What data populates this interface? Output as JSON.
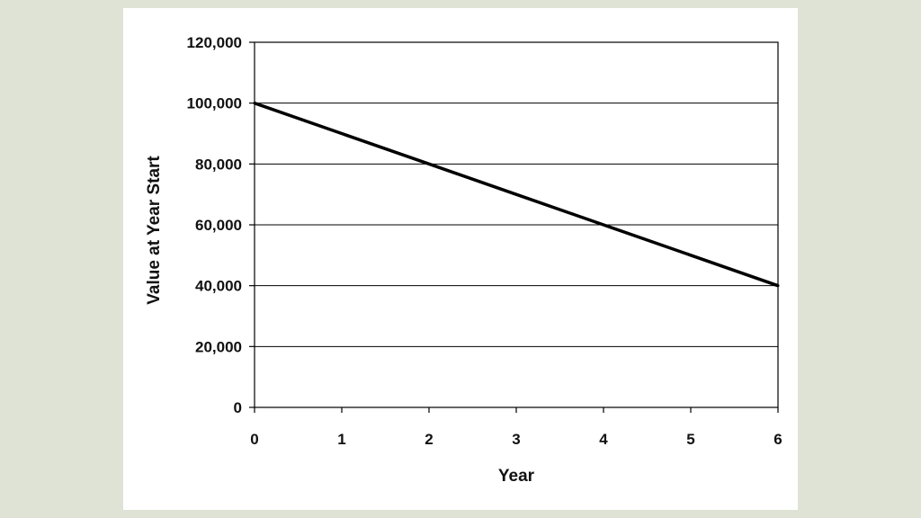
{
  "chart_data": {
    "type": "line",
    "xlabel": "Year",
    "ylabel": "Value at Year Start",
    "xlim": [
      0,
      6
    ],
    "ylim": [
      0,
      120000
    ],
    "x_ticks": [
      "0",
      "1",
      "2",
      "3",
      "4",
      "5",
      "6"
    ],
    "y_ticks": [
      "0",
      "20,000",
      "40,000",
      "60,000",
      "80,000",
      "100,000",
      "120,000"
    ],
    "grid": "horizontal",
    "legend": "none",
    "series": [
      {
        "x": [
          0,
          1,
          2,
          3,
          4,
          5,
          6
        ],
        "values": [
          100000,
          90000,
          80000,
          70000,
          60000,
          50000,
          40000
        ],
        "color": "#000000"
      }
    ]
  }
}
